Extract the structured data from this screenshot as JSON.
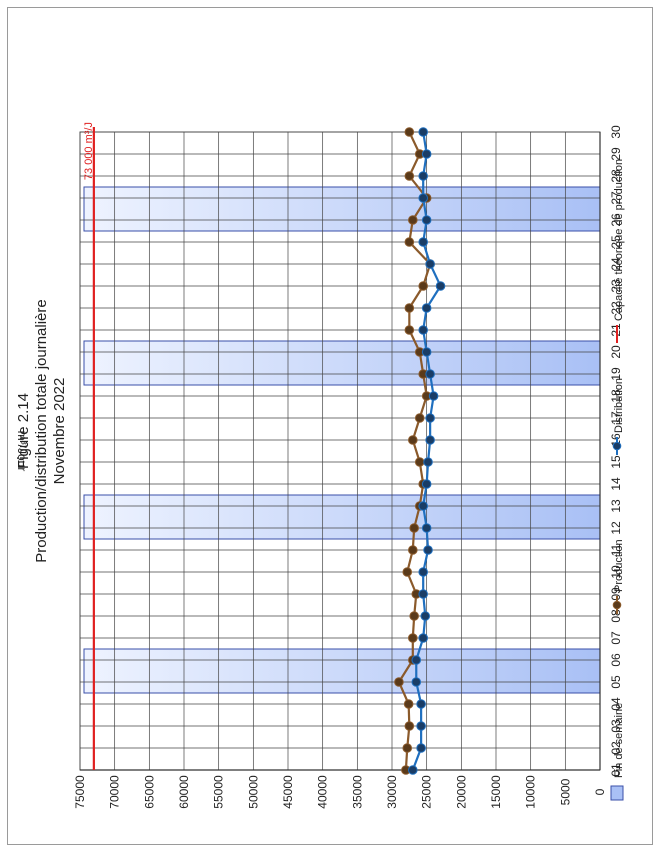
{
  "chart_data": {
    "type": "line",
    "figure_label": "Figure 2.14",
    "title": "Production/distribution totale journalière",
    "subtitle": "Novembre 2022",
    "ylabel": "m³/Jour",
    "xlabel": "",
    "ylim": [
      0,
      75000
    ],
    "ytick_step": 5000,
    "grid": true,
    "orientation": "rotated-90-ccw",
    "categories": [
      "01",
      "02",
      "03",
      "04",
      "05",
      "06",
      "07",
      "08",
      "09",
      "10",
      "11",
      "12",
      "13",
      "14",
      "15",
      "16",
      "17",
      "18",
      "19",
      "20",
      "21",
      "22",
      "23",
      "24",
      "25",
      "26",
      "27",
      "28",
      "29",
      "30"
    ],
    "weekend_ranges": [
      [
        "05",
        "06"
      ],
      [
        "12",
        "13"
      ],
      [
        "19",
        "20"
      ],
      [
        "26",
        "27"
      ]
    ],
    "series": [
      {
        "name": "Production",
        "color": "#8b5a2b",
        "marker_fill": "#5a3a1a",
        "values": [
          28000,
          27800,
          27500,
          27600,
          29000,
          27000,
          27000,
          26800,
          26500,
          27800,
          27000,
          26800,
          26000,
          25500,
          26000,
          27000,
          26000,
          25000,
          25500,
          26000,
          27500,
          27500,
          25500,
          24500,
          27500,
          27000,
          25000,
          27500,
          26000,
          27500
        ]
      },
      {
        "name": "Distribution",
        "color": "#1f6fbf",
        "marker_fill": "#1a3d66",
        "values": [
          27000,
          25800,
          25800,
          25800,
          26500,
          26500,
          25500,
          25200,
          25500,
          25500,
          24800,
          25000,
          25500,
          25000,
          24800,
          24500,
          24500,
          24000,
          24500,
          25000,
          25500,
          25000,
          23000,
          24500,
          25500,
          25000,
          25500,
          25500,
          25000,
          25500
        ]
      }
    ],
    "capacity_line": {
      "name": "Capacité théorique de production",
      "value": 73000,
      "label": "73 000 m³/J",
      "color": "#e02020"
    },
    "weekend_legend": {
      "name": "Fin de semaine",
      "color": "#a9c0f5"
    },
    "legend_placement": "bottom"
  }
}
